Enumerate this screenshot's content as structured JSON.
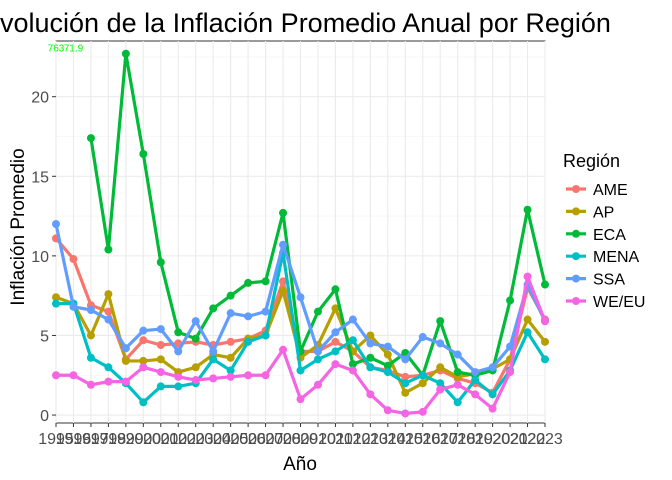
{
  "chart_data": {
    "type": "line",
    "title": "volución de la Inflación Promedio Anual por Región",
    "xlabel": "Año",
    "ylabel": "Inflación Promedio",
    "xlim": [
      1995,
      2023
    ],
    "ylim": [
      -0.5,
      23.5
    ],
    "y_ticks": [
      0,
      5,
      10,
      15,
      20
    ],
    "x_ticks": [
      1995,
      1996,
      1997,
      1998,
      1999,
      2000,
      2001,
      2002,
      2003,
      2004,
      2005,
      2006,
      2007,
      2008,
      2009,
      2010,
      2011,
      2012,
      2013,
      2014,
      2015,
      2016,
      2017,
      2018,
      2019,
      2020,
      2021,
      2022,
      2023
    ],
    "grid": true,
    "legend": {
      "title": "Región",
      "position": "right"
    },
    "annotations": [
      {
        "text": "763",
        "x": 1995,
        "y": 23.1
      },
      {
        "text": "71.9",
        "x": 1996,
        "y": 23.1
      }
    ],
    "series": [
      {
        "name": "AME",
        "color": "#F8766D",
        "values": [
          11.1,
          9.8,
          6.9,
          6.5,
          3.5,
          4.7,
          4.4,
          4.5,
          4.6,
          4.4,
          4.6,
          4.8,
          5.3,
          8.4,
          4.0,
          4.0,
          4.6,
          4.0,
          3.0,
          2.8,
          2.4,
          2.5,
          2.8,
          2.3,
          2.0,
          1.4,
          3.5,
          8.0,
          6.0
        ]
      },
      {
        "name": "AP",
        "color": "#B79F00",
        "values": [
          7.4,
          7.0,
          5.0,
          7.6,
          3.4,
          3.4,
          3.5,
          2.7,
          3.0,
          3.8,
          3.6,
          4.8,
          5.0,
          7.8,
          3.6,
          4.4,
          6.7,
          4.0,
          5.0,
          3.8,
          1.4,
          2.0,
          3.0,
          2.4,
          2.6,
          2.9,
          3.5,
          6.0,
          4.6
        ]
      },
      {
        "name": "ECA",
        "color": "#00BA38",
        "values": [
          null,
          null,
          17.4,
          10.4,
          22.7,
          16.4,
          9.6,
          5.2,
          4.8,
          6.7,
          7.5,
          8.3,
          8.4,
          12.7,
          4.0,
          6.5,
          7.9,
          3.2,
          3.6,
          3.1,
          3.9,
          2.5,
          5.9,
          2.7,
          2.5,
          2.8,
          7.2,
          12.9,
          8.2
        ]
      },
      {
        "name": "MENA",
        "color": "#00BFC4",
        "values": [
          7.0,
          7.0,
          3.6,
          3.0,
          2.0,
          0.8,
          1.8,
          1.8,
          2.0,
          3.5,
          2.8,
          4.6,
          5.0,
          10.2,
          2.8,
          3.5,
          4.0,
          4.7,
          3.0,
          2.7,
          2.0,
          2.5,
          2.0,
          0.8,
          2.2,
          1.3,
          2.8,
          5.2,
          3.5
        ]
      },
      {
        "name": "SSA",
        "color": "#619CFF",
        "values": [
          12.0,
          6.8,
          6.6,
          6.0,
          4.2,
          5.3,
          5.4,
          4.0,
          5.9,
          4.0,
          6.4,
          6.2,
          6.5,
          10.7,
          7.4,
          4.0,
          5.2,
          6.0,
          4.5,
          4.3,
          3.5,
          4.9,
          4.5,
          3.8,
          2.7,
          3.0,
          4.3,
          8.2,
          5.9
        ]
      },
      {
        "name": "WE/EU",
        "color": "#F564E3",
        "values": [
          2.5,
          2.5,
          1.9,
          2.1,
          2.1,
          3.0,
          2.7,
          2.4,
          2.2,
          2.3,
          2.4,
          2.5,
          2.5,
          4.1,
          1.0,
          1.9,
          3.2,
          2.8,
          1.3,
          0.3,
          0.1,
          0.2,
          1.6,
          1.9,
          1.3,
          0.4,
          2.7,
          8.7,
          5.9
        ]
      }
    ]
  }
}
